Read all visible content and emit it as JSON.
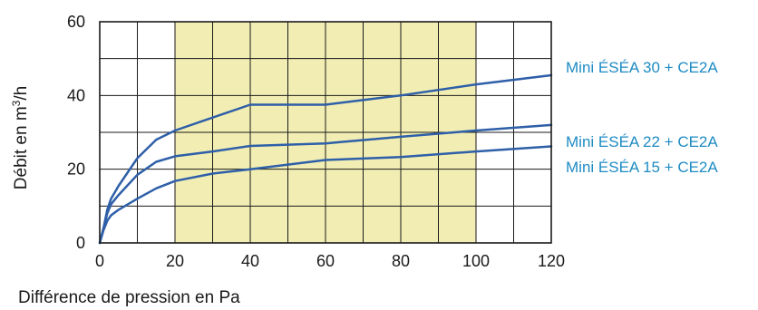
{
  "chart_data": {
    "type": "line",
    "title": "",
    "xlabel": "Différence de pression en Pa",
    "ylabel_prefix": "Débit en m",
    "ylabel_sup": "3",
    "ylabel_suffix": "/h",
    "xlim": [
      0,
      120
    ],
    "ylim": [
      0,
      60
    ],
    "x_ticks": [
      "0",
      "20",
      "40",
      "60",
      "80",
      "100",
      "120"
    ],
    "y_ticks": [
      "0",
      "20",
      "40",
      "60"
    ],
    "grid": true,
    "highlight_band": {
      "x": [
        20,
        100
      ],
      "color": "#f2eeb3"
    },
    "line_color": "#2e5fa8",
    "label_color": "#1e8bc3",
    "series": [
      {
        "name": "Mini ÉSÉA 30 + CE2A",
        "points": [
          [
            0,
            0
          ],
          [
            1,
            4
          ],
          [
            2,
            9
          ],
          [
            3,
            12
          ],
          [
            5,
            15.5
          ],
          [
            10,
            23
          ],
          [
            15,
            28
          ],
          [
            20,
            30.5
          ],
          [
            30,
            34
          ],
          [
            40,
            37.5
          ],
          [
            60,
            37.5
          ],
          [
            80,
            40
          ],
          [
            100,
            43
          ],
          [
            120,
            45.5
          ]
        ]
      },
      {
        "name": "Mini ÉSÉA 22 + CE2A",
        "points": [
          [
            0,
            0
          ],
          [
            1,
            4
          ],
          [
            2,
            8
          ],
          [
            3,
            10.5
          ],
          [
            5,
            13
          ],
          [
            10,
            18.5
          ],
          [
            15,
            22
          ],
          [
            20,
            23.5
          ],
          [
            30,
            24.8
          ],
          [
            40,
            26.3
          ],
          [
            60,
            27
          ],
          [
            80,
            28.8
          ],
          [
            100,
            30.5
          ],
          [
            120,
            32
          ]
        ]
      },
      {
        "name": "Mini ÉSÉA 15 + CE2A",
        "points": [
          [
            0,
            0
          ],
          [
            1,
            3.5
          ],
          [
            2,
            6
          ],
          [
            3,
            7.5
          ],
          [
            5,
            9
          ],
          [
            10,
            12
          ],
          [
            15,
            14.8
          ],
          [
            20,
            16.8
          ],
          [
            30,
            18.8
          ],
          [
            40,
            20
          ],
          [
            60,
            22.5
          ],
          [
            80,
            23.3
          ],
          [
            100,
            24.8
          ],
          [
            120,
            26.2
          ]
        ]
      }
    ]
  }
}
